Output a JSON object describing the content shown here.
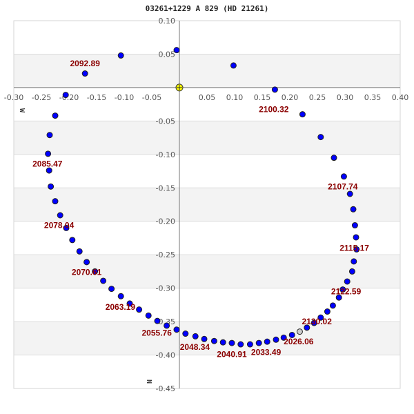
{
  "chart_data": {
    "type": "scatter",
    "title": "03261+1229 A   829 (HD 21261)",
    "xlim": [
      -0.3,
      0.4
    ],
    "ylim": [
      -0.45,
      0.1
    ],
    "x_ticks": [
      "-0.30",
      "-0.25",
      "-0.20",
      "-0.15",
      "-0.10",
      "-0.05",
      "0.05",
      "0.10",
      "0.15",
      "0.20",
      "0.25",
      "0.30",
      "0.35",
      "0.40"
    ],
    "x_tick_values": [
      -0.3,
      -0.25,
      -0.2,
      -0.15,
      -0.1,
      -0.05,
      0.05,
      0.1,
      0.15,
      0.2,
      0.25,
      0.3,
      0.35,
      0.4
    ],
    "y_ticks": [
      "0.10",
      "0.05",
      "-0.05",
      "-0.10",
      "-0.15",
      "-0.20",
      "-0.25",
      "-0.30",
      "-0.35",
      "-0.40",
      "-0.45"
    ],
    "y_tick_values": [
      0.1,
      0.05,
      -0.05,
      -0.1,
      -0.15,
      -0.2,
      -0.25,
      -0.3,
      -0.35,
      -0.4,
      -0.45
    ],
    "grid": "horizontal, alternating shaded bands",
    "direction_labels": {
      "west": "W",
      "north": "N"
    },
    "colors": {
      "points": "#0000ff",
      "point_outline": "#222222",
      "primary": "#ffff00",
      "current": "#cccccc",
      "labels": "#8b0000",
      "band": "#f3f3f3"
    },
    "primary": {
      "x": 0,
      "y": 0
    },
    "current_position": {
      "x": 0.218,
      "y": -0.365
    },
    "points": [
      [
        -0.005,
        0.056
      ],
      [
        0.098,
        0.033
      ],
      [
        0.173,
        -0.003
      ],
      [
        0.223,
        -0.04
      ],
      [
        0.256,
        -0.074
      ],
      [
        0.28,
        -0.105
      ],
      [
        0.298,
        -0.133
      ],
      [
        0.309,
        -0.159
      ],
      [
        0.315,
        -0.182
      ],
      [
        0.318,
        -0.206
      ],
      [
        0.32,
        -0.224
      ],
      [
        0.321,
        -0.242
      ],
      [
        0.316,
        -0.26
      ],
      [
        0.313,
        -0.275
      ],
      [
        0.304,
        -0.29
      ],
      [
        0.296,
        -0.302
      ],
      [
        0.289,
        -0.314
      ],
      [
        0.278,
        -0.326
      ],
      [
        0.268,
        -0.335
      ],
      [
        0.256,
        -0.344
      ],
      [
        0.244,
        -0.352
      ],
      [
        0.231,
        -0.359
      ],
      [
        0.204,
        -0.37
      ],
      [
        0.189,
        -0.374
      ],
      [
        0.175,
        -0.377
      ],
      [
        0.159,
        -0.38
      ],
      [
        0.144,
        -0.382
      ],
      [
        0.128,
        -0.384
      ],
      [
        0.111,
        -0.384
      ],
      [
        0.095,
        -0.382
      ],
      [
        0.079,
        -0.381
      ],
      [
        0.063,
        -0.379
      ],
      [
        0.045,
        -0.376
      ],
      [
        0.029,
        -0.372
      ],
      [
        0.011,
        -0.368
      ],
      [
        -0.005,
        -0.362
      ],
      [
        -0.023,
        -0.356
      ],
      [
        -0.04,
        -0.349
      ],
      [
        -0.056,
        -0.341
      ],
      [
        -0.073,
        -0.332
      ],
      [
        -0.09,
        -0.323
      ],
      [
        -0.106,
        -0.312
      ],
      [
        -0.123,
        -0.301
      ],
      [
        -0.138,
        -0.289
      ],
      [
        -0.153,
        -0.275
      ],
      [
        -0.168,
        -0.261
      ],
      [
        -0.181,
        -0.245
      ],
      [
        -0.194,
        -0.228
      ],
      [
        -0.205,
        -0.21
      ],
      [
        -0.216,
        -0.191
      ],
      [
        -0.225,
        -0.17
      ],
      [
        -0.233,
        -0.148
      ],
      [
        -0.236,
        -0.124
      ],
      [
        -0.238,
        -0.099
      ],
      [
        -0.235,
        -0.071
      ],
      [
        -0.225,
        -0.042
      ],
      [
        -0.206,
        -0.011
      ],
      [
        -0.171,
        0.021
      ],
      [
        -0.106,
        0.048
      ]
    ],
    "annotations": [
      {
        "text": "2092.89",
        "x": -0.171,
        "y": 0.036
      },
      {
        "text": "2100.32",
        "x": 0.171,
        "y": -0.02
      },
      {
        "text": "2107.74",
        "x": 0.296,
        "y": -0.148
      },
      {
        "text": "2115.17",
        "x": 0.317,
        "y": -0.24
      },
      {
        "text": "2122.59",
        "x": 0.302,
        "y": -0.305
      },
      {
        "text": "2130.02",
        "x": 0.249,
        "y": -0.35
      },
      {
        "text": "2026.06",
        "x": 0.216,
        "y": -0.38
      },
      {
        "text": "2033.49",
        "x": 0.157,
        "y": -0.396
      },
      {
        "text": "2040.91",
        "x": 0.095,
        "y": -0.399
      },
      {
        "text": "2048.34",
        "x": 0.028,
        "y": -0.388
      },
      {
        "text": "2055.76",
        "x": -0.041,
        "y": -0.365
      },
      {
        "text": "2063.19",
        "x": -0.107,
        "y": -0.328
      },
      {
        "text": "2070.61",
        "x": -0.168,
        "y": -0.276
      },
      {
        "text": "2078.04",
        "x": -0.218,
        "y": -0.206
      },
      {
        "text": "2085.47",
        "x": -0.239,
        "y": -0.114
      }
    ]
  }
}
